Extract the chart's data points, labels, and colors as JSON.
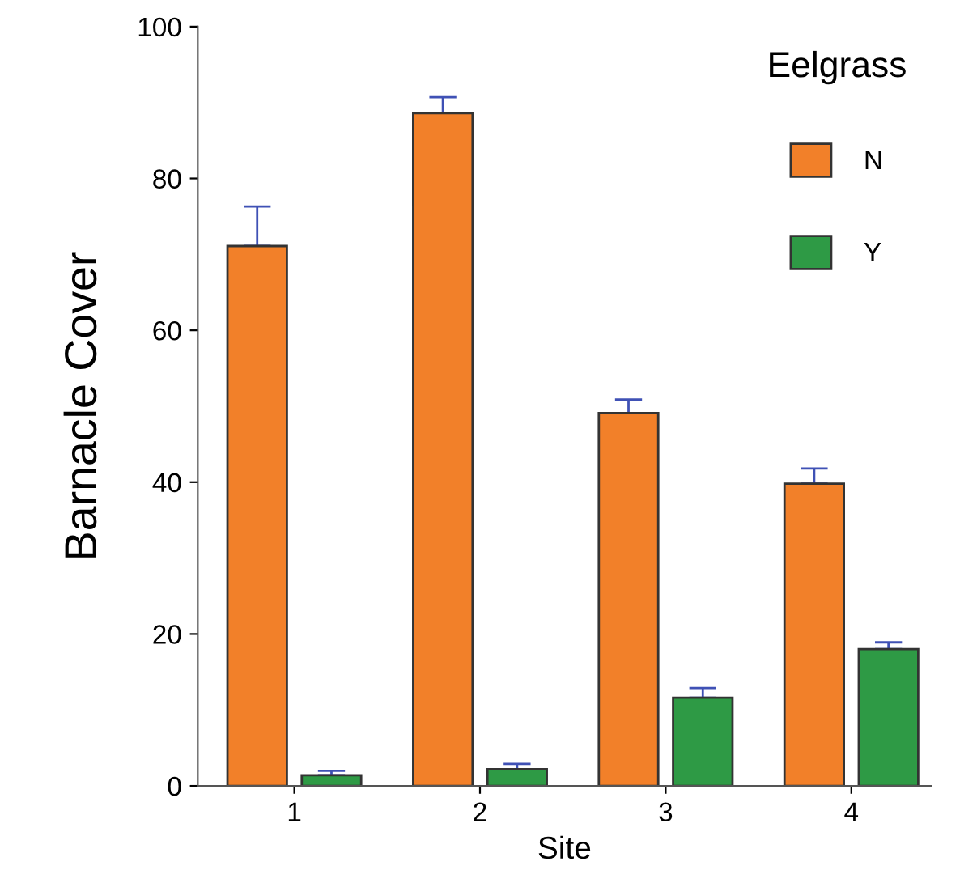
{
  "chart_data": {
    "type": "bar",
    "xlabel": "Site",
    "ylabel": "Barnacle Cover",
    "legend_title": "Eelgrass",
    "categories": [
      "1",
      "2",
      "3",
      "4"
    ],
    "series": [
      {
        "name": "N",
        "color": "#f28029",
        "values": [
          71.1,
          88.6,
          49.1,
          39.8
        ],
        "errors": [
          [
            71.1,
            76.3
          ],
          [
            88.6,
            90.7
          ],
          [
            49.1,
            50.9
          ],
          [
            39.8,
            41.8
          ]
        ]
      },
      {
        "name": "Y",
        "color": "#2e9a45",
        "values": [
          1.4,
          2.2,
          11.6,
          18.0
        ],
        "errors": [
          [
            1.4,
            2.0
          ],
          [
            2.2,
            2.9
          ],
          [
            11.6,
            12.9
          ],
          [
            18.0,
            18.9
          ]
        ]
      }
    ],
    "ylim": [
      0,
      100
    ],
    "yticks": [
      0,
      20,
      40,
      60,
      80,
      100
    ],
    "grid": false,
    "legend": "top right"
  }
}
